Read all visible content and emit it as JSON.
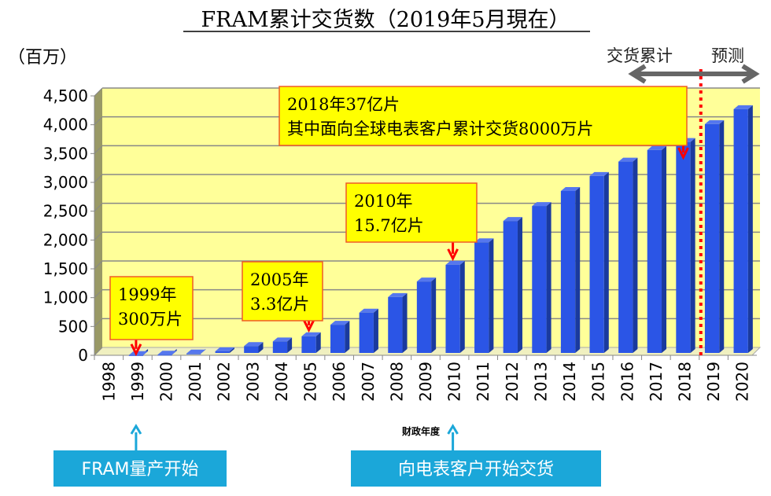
{
  "chart_data": {
    "type": "bar",
    "title": "FRAM累计交货数（2019年5月現在）",
    "ylabel": "（百万）",
    "xlabel": "财政年度",
    "ylim": [
      0,
      4500
    ],
    "yticks": [
      "0",
      "500",
      "1,000",
      "1,500",
      "2,000",
      "2,500",
      "3,000",
      "3,500",
      "4,000",
      "4,500"
    ],
    "ytick_values": [
      0,
      500,
      1000,
      1500,
      2000,
      2500,
      3000,
      3500,
      4000,
      4500
    ],
    "grid": true,
    "categories": [
      "1998",
      "1999",
      "2000",
      "2001",
      "2002",
      "2003",
      "2004",
      "2005",
      "2006",
      "2007",
      "2008",
      "2009",
      "2010",
      "2011",
      "2012",
      "2013",
      "2014",
      "2015",
      "2016",
      "2017",
      "2018",
      "2019",
      "2020"
    ],
    "values": [
      0,
      3,
      10,
      30,
      70,
      160,
      240,
      330,
      530,
      740,
      1010,
      1280,
      1570,
      1960,
      2330,
      2590,
      2850,
      3110,
      3360,
      3560,
      3700,
      4010,
      4270
    ],
    "bar_color": "#2b55e6",
    "plot_background": "#ffff99",
    "divider": {
      "after_category": "2018",
      "color": "#ff0000",
      "left_label": "交货累计",
      "right_label": "预测"
    },
    "annotations": [
      {
        "category": "1999",
        "lines": [
          "1999年",
          "300万片"
        ]
      },
      {
        "category": "2005",
        "lines": [
          "2005年",
          "3.3亿片"
        ]
      },
      {
        "category": "2010",
        "lines": [
          "2010年",
          "15.7亿片"
        ]
      },
      {
        "category": "2018",
        "lines": [
          "2018年37亿片",
          "其中面向全球电表客户累计交货8000万片"
        ]
      }
    ],
    "callouts": [
      {
        "category": "1999",
        "text": "FRAM量产开始"
      },
      {
        "category": "2010",
        "text": "向电表客户开始交货"
      }
    ]
  }
}
